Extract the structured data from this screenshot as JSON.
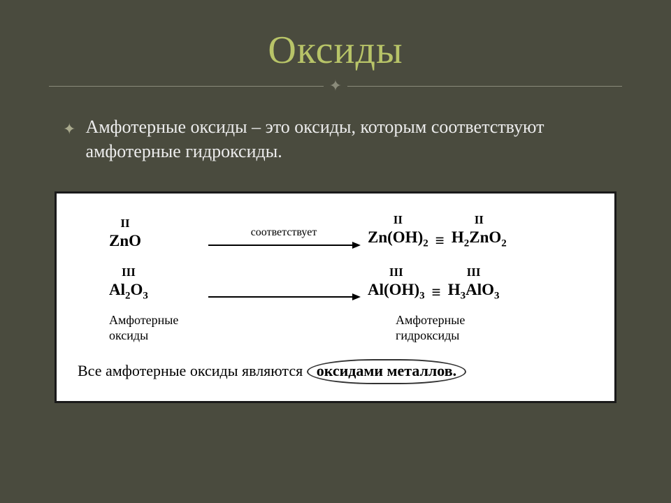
{
  "title": "Оксиды",
  "flourish": "✦",
  "bullet_glyph": "✦",
  "definition": "Амфотерные оксиды – это оксиды, которым соответствуют амфотерные гидроксиды.",
  "diagram": {
    "row1": {
      "left_roman": "II",
      "left_formula": "ZnO",
      "arrow_label": "соответствует",
      "right_roman1": "II",
      "right_formula1": "Zn(OH)",
      "right_formula1_sub": "2",
      "equiv": "≡",
      "right_roman2": "II",
      "right_formula2_a": "H",
      "right_formula2_a_sub": "2",
      "right_formula2_b": "ZnO",
      "right_formula2_b_sub": "2"
    },
    "row2": {
      "left_roman": "III",
      "left_formula_a": "Al",
      "left_formula_a_sub": "2",
      "left_formula_b": "O",
      "left_formula_b_sub": "3",
      "right_roman1": "III",
      "right_formula1": "Al(OH)",
      "right_formula1_sub": "3",
      "equiv": "≡",
      "right_roman2": "III",
      "right_formula2_a": "H",
      "right_formula2_a_sub": "3",
      "right_formula2_b": "AlO",
      "right_formula2_b_sub": "3"
    },
    "label_left": "Амфотерные оксиды",
    "label_right": "Амфотерные гидроксиды",
    "footer_prefix": "Все амфотерные оксиды являются ",
    "footer_circled": "оксидами металлов."
  },
  "colors": {
    "background": "#4a4b3e",
    "title": "#b8c468",
    "divider": "#8a8b7a",
    "text": "#ececec",
    "box_bg": "#ffffff",
    "box_border": "#1a1a1a",
    "arrow": "#000000"
  }
}
